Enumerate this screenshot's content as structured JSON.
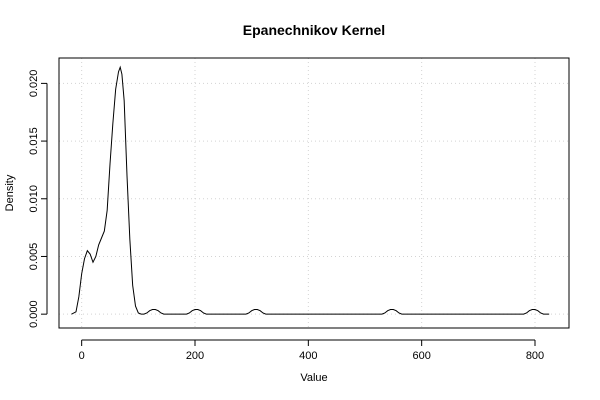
{
  "chart_data": {
    "type": "line",
    "title": "Epanechnikov Kernel",
    "xlabel": "Value",
    "ylabel": "Density",
    "xlim": [
      -40,
      860
    ],
    "ylim": [
      -0.0012,
      0.0222
    ],
    "x_ticks": [
      0,
      200,
      400,
      600,
      800
    ],
    "x_tick_labels": [
      "0",
      "200",
      "400",
      "600",
      "800"
    ],
    "y_ticks": [
      0.0,
      0.005,
      0.01,
      0.015,
      0.02
    ],
    "y_tick_labels": [
      "0.000",
      "0.005",
      "0.010",
      "0.015",
      "0.020"
    ],
    "grid": true,
    "series": [
      {
        "x": [
          -18,
          -10,
          -5,
          0,
          5,
          10,
          15,
          20,
          25,
          30,
          35,
          40,
          45,
          50,
          55,
          60,
          65,
          68,
          71,
          75,
          80,
          85,
          90,
          95,
          100,
          105,
          110,
          115,
          120,
          125,
          130,
          135,
          140,
          145,
          150,
          185,
          190,
          195,
          200,
          205,
          210,
          215,
          220,
          225,
          290,
          295,
          300,
          305,
          310,
          315,
          320,
          325,
          330,
          335,
          530,
          535,
          540,
          545,
          550,
          555,
          560,
          565,
          570,
          575,
          780,
          785,
          790,
          795,
          800,
          805,
          810,
          815,
          820,
          825
        ],
        "y": [
          0.0,
          0.0002,
          0.0015,
          0.0035,
          0.0048,
          0.0055,
          0.0052,
          0.0045,
          0.005,
          0.006,
          0.0066,
          0.0072,
          0.009,
          0.013,
          0.0165,
          0.0195,
          0.021,
          0.0214,
          0.0208,
          0.0185,
          0.012,
          0.0065,
          0.0025,
          0.0007,
          0.0001,
          0.0,
          0.0,
          0.0001,
          0.0003,
          0.0004,
          0.0004,
          0.0003,
          0.0001,
          0.0,
          0.0,
          0.0,
          0.0001,
          0.0003,
          0.0004,
          0.0004,
          0.0003,
          0.0001,
          0.0,
          0.0,
          0.0,
          0.0001,
          0.0003,
          0.0004,
          0.0004,
          0.0003,
          0.0001,
          0.0,
          0.0,
          0.0,
          0.0,
          0.0001,
          0.0003,
          0.0004,
          0.0004,
          0.0003,
          0.0001,
          0.0,
          0.0,
          0.0,
          0.0,
          0.0001,
          0.0003,
          0.0004,
          0.0004,
          0.0003,
          0.0001,
          0.0,
          0.0,
          0.0
        ]
      }
    ]
  }
}
